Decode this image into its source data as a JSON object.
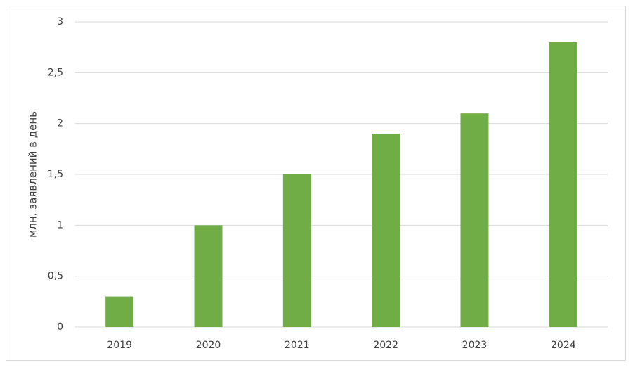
{
  "chart_data": {
    "type": "bar",
    "y_label": "млн. заявлений в день",
    "categories": [
      "2019",
      "2020",
      "2021",
      "2022",
      "2023",
      "2024"
    ],
    "values": [
      0.3,
      1.0,
      1.5,
      1.9,
      2.1,
      2.8
    ],
    "color": "#70ad47",
    "ylim": [
      0,
      3
    ],
    "yticks": [
      0,
      {
        "value": 0.5,
        "label": "0,5"
      },
      1,
      {
        "value": 1.5,
        "label": "1,5"
      },
      2,
      {
        "value": 2.5,
        "label": "2,5"
      },
      3
    ],
    "grid": true
  }
}
